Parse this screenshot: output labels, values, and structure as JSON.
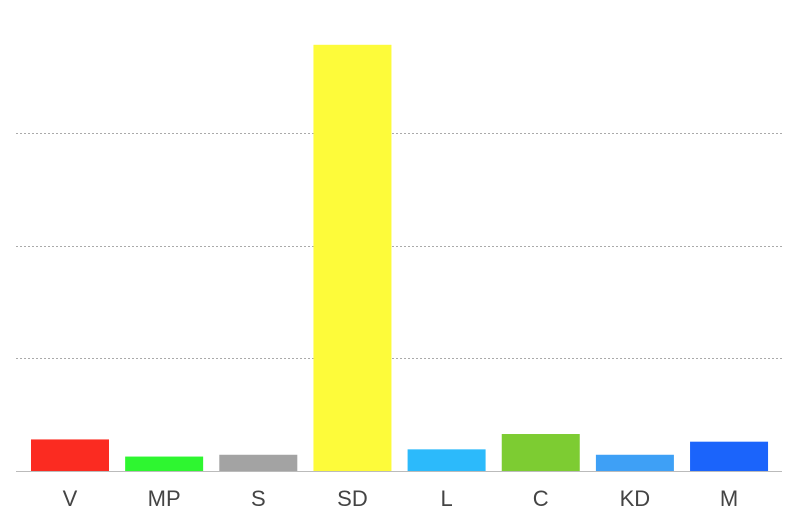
{
  "chart_data": {
    "type": "bar",
    "categories": [
      "V",
      "MP",
      "S",
      "SD",
      "L",
      "C",
      "KD",
      "M"
    ],
    "values": [
      7.0,
      3.2,
      3.6,
      94.5,
      4.8,
      8.2,
      3.6,
      6.5
    ],
    "colors": [
      "#fb2b21",
      "#2ef630",
      "#a3a3a3",
      "#fdfb3a",
      "#2cbafb",
      "#7dcc32",
      "#3ea0f6",
      "#1b64fb"
    ],
    "ylim": [
      0,
      100
    ],
    "gridlines": [
      25,
      50,
      75
    ],
    "grid": true,
    "legend": "none"
  }
}
